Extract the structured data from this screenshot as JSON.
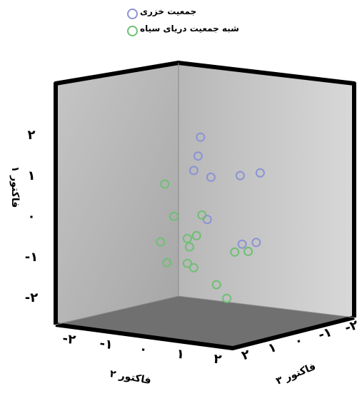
{
  "chart_data": {
    "type": "scatter",
    "projection": "3d",
    "series": [
      {
        "name": "جمعیت خزری",
        "color": "#8b93d4",
        "points": [
          {
            "f2": 0.3,
            "f3": 0.6,
            "f1": 1.8
          },
          {
            "f2": 0.35,
            "f3": -0.2,
            "f1": 1.55
          },
          {
            "f2": 0.25,
            "f3": -0.2,
            "f1": 1.2
          },
          {
            "f2": 0.65,
            "f3": -0.2,
            "f1": 1.05
          },
          {
            "f2": 1.2,
            "f3": 0.8,
            "f1": 0.85
          },
          {
            "f2": 1.6,
            "f3": 1.3,
            "f1": 0.8
          },
          {
            "f2": 0.55,
            "f3": -0.1,
            "f1": 0.0
          },
          {
            "f2": 1.3,
            "f3": 0.4,
            "f1": -0.7
          },
          {
            "f2": 1.6,
            "f3": 0.6,
            "f1": -0.7
          }
        ]
      },
      {
        "name": "شبه جمعیت دریای سیاه",
        "color": "#6fbf73",
        "points": [
          {
            "f2": -0.4,
            "f3": -0.4,
            "f1": 0.9
          },
          {
            "f2": -0.2,
            "f3": -0.3,
            "f1": 0.1
          },
          {
            "f2": 0.4,
            "f3": 0.1,
            "f1": 0.05
          },
          {
            "f2": -0.5,
            "f3": -0.4,
            "f1": -0.5
          },
          {
            "f2": 0.1,
            "f3": -0.2,
            "f1": -0.45
          },
          {
            "f2": 0.3,
            "f3": -0.1,
            "f1": -0.4
          },
          {
            "f2": 0.15,
            "f3": -0.2,
            "f1": -0.65
          },
          {
            "f2": -0.35,
            "f3": -0.4,
            "f1": -1.0
          },
          {
            "f2": 0.1,
            "f3": -0.2,
            "f1": -1.05
          },
          {
            "f2": 0.25,
            "f3": -0.2,
            "f1": -1.15
          },
          {
            "f2": 1.1,
            "f3": 0.6,
            "f1": -0.95
          },
          {
            "f2": 1.4,
            "f3": 0.7,
            "f1": -0.95
          },
          {
            "f2": 0.7,
            "f3": 0.4,
            "f1": -1.7
          },
          {
            "f2": 0.9,
            "f3": 0.7,
            "f1": -2.1
          }
        ]
      }
    ],
    "axes": {
      "vertical": {
        "label": "فاکتور ۱",
        "ticks": [
          "۲",
          "۱",
          "۰",
          "-۱",
          "-۲"
        ],
        "values": [
          2,
          1,
          0,
          -1,
          -2
        ]
      },
      "depth_left": {
        "label": "فاکتور ۲",
        "ticks": [
          "-۲",
          "-۱",
          "۰",
          "۱",
          "۲"
        ],
        "values": [
          -2,
          -1,
          0,
          1,
          2
        ]
      },
      "depth_right": {
        "label": "فاکتور ۳",
        "ticks": [
          "-۲",
          "-۱",
          "۰",
          "۱",
          "۲"
        ],
        "values": [
          -2,
          -1,
          0,
          1,
          2
        ]
      }
    },
    "legend_position": "top",
    "grid": false,
    "colors": {
      "back_wall": "#9a9a9a",
      "side_wall": "#c8c8c8",
      "floor": "#6e6e6e",
      "frame": "#000000"
    }
  }
}
